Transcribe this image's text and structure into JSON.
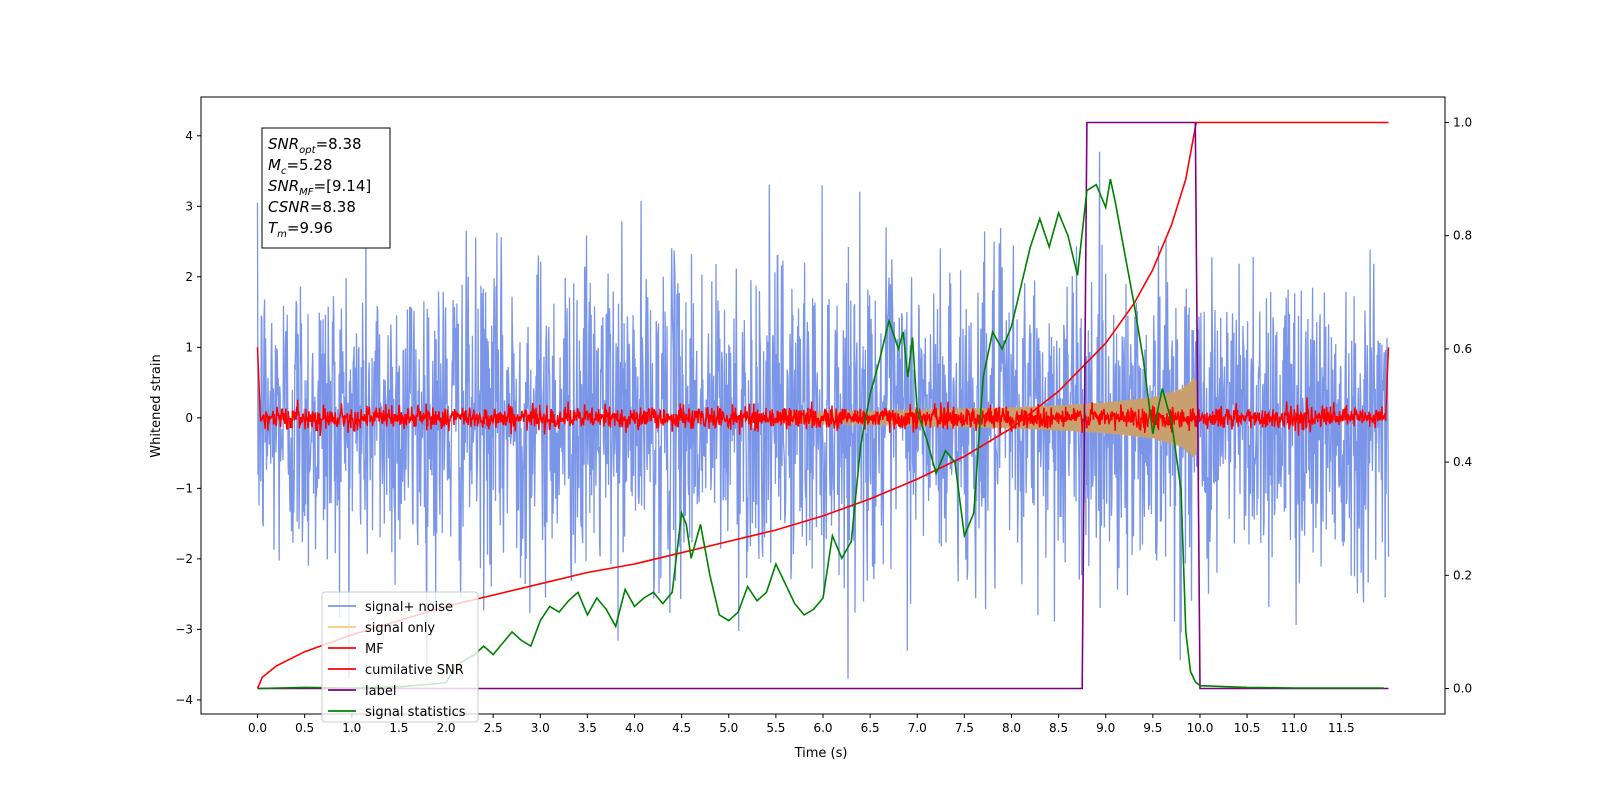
{
  "chart_data": {
    "type": "line",
    "xlabel": "Time (s)",
    "ylabel": "Whitened strain",
    "xlim": [
      -0.6,
      12.6
    ],
    "ylim_left": [
      -4.2,
      4.55
    ],
    "ylim_right": [
      -0.045,
      1.045
    ],
    "xticks": [
      "0.0",
      "0.5",
      "1.0",
      "1.5",
      "2.0",
      "2.5",
      "3.0",
      "3.5",
      "4.0",
      "4.5",
      "5.0",
      "5.5",
      "6.0",
      "6.5",
      "7.0",
      "7.5",
      "8.0",
      "8.5",
      "9.0",
      "9.5",
      "10.0",
      "10.5",
      "11.0",
      "11.5"
    ],
    "yticks_left": [
      "4",
      "3",
      "2",
      "1",
      "0",
      "−1",
      "−2",
      "−3",
      "−4"
    ],
    "yticks_right": [
      "1.0",
      "0.8",
      "0.6",
      "0.4",
      "0.2",
      "0.0"
    ],
    "annotation": {
      "lines": [
        {
          "sym": "SNR",
          "sub": "opt",
          "val": "=8.38"
        },
        {
          "sym": "M",
          "sub": "c",
          "val": "=5.28"
        },
        {
          "sym": "SNR",
          "sub": "MF",
          "val": "=[9.14]"
        },
        {
          "sym": "CSNR",
          "sub": "",
          "val": "=8.38"
        },
        {
          "sym": "T",
          "sub": "m",
          "val": "=9.96"
        }
      ]
    },
    "legend": {
      "placement": "lower-left",
      "entries": [
        {
          "label": "signal+ noise",
          "color": "#7b96e8"
        },
        {
          "label": "signal only",
          "color": "#f7c77a"
        },
        {
          "label": "MF",
          "color": "#ff0000"
        },
        {
          "label": "cumilative SNR",
          "color": "#ff0000"
        },
        {
          "label": "label",
          "color": "#800080"
        },
        {
          "label": "signal statistics",
          "color": "#008000"
        }
      ]
    },
    "series": [
      {
        "name": "signal+ noise",
        "axis": "left",
        "color": "#7b96e8",
        "kind": "noise",
        "x_range": [
          0,
          12
        ],
        "std": 1.1
      },
      {
        "name": "signal only",
        "axis": "left",
        "color": "#f7c77a",
        "kind": "chirp",
        "envelope": [
          [
            0,
            0.03
          ],
          [
            5,
            0.06
          ],
          [
            6.5,
            0.1
          ],
          [
            8,
            0.15
          ],
          [
            8.5,
            0.18
          ],
          [
            9,
            0.22
          ],
          [
            9.5,
            0.3
          ],
          [
            9.8,
            0.42
          ],
          [
            9.96,
            0.6
          ],
          [
            9.97,
            0
          ]
        ]
      },
      {
        "name": "MF",
        "axis": "left",
        "color": "#ff0000",
        "kind": "mf",
        "x_range": [
          0,
          12
        ],
        "std": 0.08
      },
      {
        "name": "cumilative SNR",
        "axis": "right",
        "color": "#ff0000",
        "points": [
          [
            0,
            0.0
          ],
          [
            0.05,
            0.02
          ],
          [
            0.2,
            0.04
          ],
          [
            0.5,
            0.065
          ],
          [
            1.0,
            0.095
          ],
          [
            1.5,
            0.12
          ],
          [
            2.0,
            0.145
          ],
          [
            2.5,
            0.165
          ],
          [
            3.0,
            0.185
          ],
          [
            3.5,
            0.205
          ],
          [
            4.0,
            0.22
          ],
          [
            4.5,
            0.24
          ],
          [
            5.0,
            0.26
          ],
          [
            5.5,
            0.28
          ],
          [
            6.0,
            0.305
          ],
          [
            6.5,
            0.335
          ],
          [
            7.0,
            0.37
          ],
          [
            7.5,
            0.41
          ],
          [
            8.0,
            0.46
          ],
          [
            8.5,
            0.525
          ],
          [
            9.0,
            0.61
          ],
          [
            9.3,
            0.68
          ],
          [
            9.5,
            0.74
          ],
          [
            9.7,
            0.82
          ],
          [
            9.85,
            0.9
          ],
          [
            9.96,
            1.0
          ],
          [
            12.0,
            1.0
          ]
        ]
      },
      {
        "name": "label",
        "axis": "right",
        "color": "#800080",
        "points": [
          [
            0,
            0
          ],
          [
            8.75,
            0
          ],
          [
            8.8,
            1
          ],
          [
            9.95,
            1
          ],
          [
            10.0,
            0
          ],
          [
            12.0,
            0
          ]
        ]
      },
      {
        "name": "signal statistics",
        "axis": "right",
        "color": "#008000",
        "points": [
          [
            0,
            0.0
          ],
          [
            0.5,
            0.002
          ],
          [
            1.0,
            0.001
          ],
          [
            1.5,
            0.003
          ],
          [
            2.0,
            0.01
          ],
          [
            2.1,
            0.04
          ],
          [
            2.2,
            0.05
          ],
          [
            2.3,
            0.06
          ],
          [
            2.4,
            0.075
          ],
          [
            2.5,
            0.06
          ],
          [
            2.6,
            0.08
          ],
          [
            2.7,
            0.1
          ],
          [
            2.8,
            0.085
          ],
          [
            2.9,
            0.075
          ],
          [
            3.0,
            0.12
          ],
          [
            3.1,
            0.145
          ],
          [
            3.2,
            0.135
          ],
          [
            3.3,
            0.155
          ],
          [
            3.4,
            0.17
          ],
          [
            3.5,
            0.13
          ],
          [
            3.6,
            0.16
          ],
          [
            3.7,
            0.14
          ],
          [
            3.8,
            0.11
          ],
          [
            3.9,
            0.175
          ],
          [
            4.0,
            0.145
          ],
          [
            4.1,
            0.16
          ],
          [
            4.2,
            0.17
          ],
          [
            4.3,
            0.15
          ],
          [
            4.4,
            0.17
          ],
          [
            4.5,
            0.31
          ],
          [
            4.55,
            0.29
          ],
          [
            4.6,
            0.23
          ],
          [
            4.7,
            0.29
          ],
          [
            4.8,
            0.2
          ],
          [
            4.9,
            0.13
          ],
          [
            5.0,
            0.12
          ],
          [
            5.1,
            0.135
          ],
          [
            5.2,
            0.18
          ],
          [
            5.3,
            0.155
          ],
          [
            5.4,
            0.17
          ],
          [
            5.5,
            0.22
          ],
          [
            5.6,
            0.185
          ],
          [
            5.7,
            0.15
          ],
          [
            5.8,
            0.13
          ],
          [
            5.9,
            0.14
          ],
          [
            6.0,
            0.16
          ],
          [
            6.1,
            0.27
          ],
          [
            6.2,
            0.23
          ],
          [
            6.3,
            0.26
          ],
          [
            6.4,
            0.43
          ],
          [
            6.5,
            0.52
          ],
          [
            6.6,
            0.58
          ],
          [
            6.7,
            0.65
          ],
          [
            6.8,
            0.6
          ],
          [
            6.85,
            0.63
          ],
          [
            6.9,
            0.55
          ],
          [
            6.95,
            0.62
          ],
          [
            7.0,
            0.49
          ],
          [
            7.1,
            0.44
          ],
          [
            7.2,
            0.38
          ],
          [
            7.3,
            0.42
          ],
          [
            7.4,
            0.4
          ],
          [
            7.5,
            0.27
          ],
          [
            7.6,
            0.31
          ],
          [
            7.7,
            0.55
          ],
          [
            7.8,
            0.63
          ],
          [
            7.9,
            0.6
          ],
          [
            8.0,
            0.64
          ],
          [
            8.1,
            0.71
          ],
          [
            8.2,
            0.78
          ],
          [
            8.3,
            0.83
          ],
          [
            8.4,
            0.78
          ],
          [
            8.5,
            0.84
          ],
          [
            8.6,
            0.8
          ],
          [
            8.7,
            0.73
          ],
          [
            8.8,
            0.88
          ],
          [
            8.9,
            0.89
          ],
          [
            9.0,
            0.85
          ],
          [
            9.05,
            0.9
          ],
          [
            9.1,
            0.86
          ],
          [
            9.2,
            0.77
          ],
          [
            9.3,
            0.68
          ],
          [
            9.4,
            0.58
          ],
          [
            9.5,
            0.45
          ],
          [
            9.6,
            0.53
          ],
          [
            9.7,
            0.47
          ],
          [
            9.8,
            0.35
          ],
          [
            9.85,
            0.1
          ],
          [
            9.9,
            0.03
          ],
          [
            9.95,
            0.012
          ],
          [
            10.0,
            0.005
          ],
          [
            10.5,
            0.002
          ],
          [
            11.0,
            0.001
          ],
          [
            11.5,
            0.001
          ],
          [
            11.95,
            0.001
          ]
        ]
      }
    ]
  }
}
